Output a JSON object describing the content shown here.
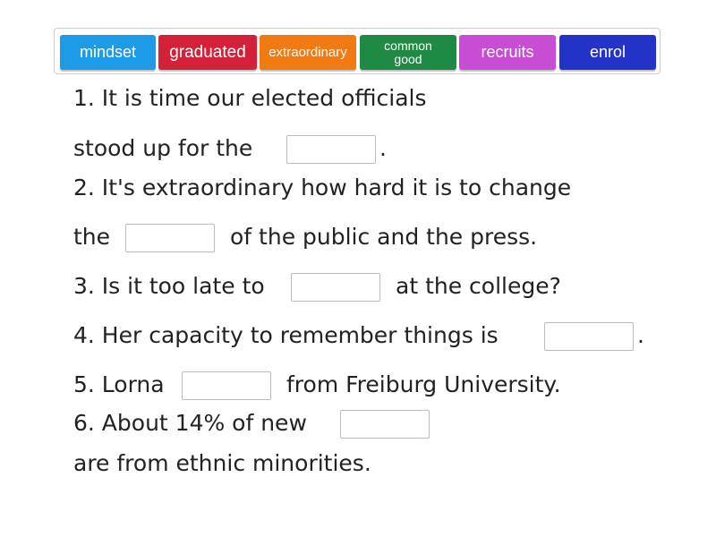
{
  "tiles": [
    {
      "label": "mindset",
      "color": "#1e9be6"
    },
    {
      "label": "graduated",
      "color": "#d4213a"
    },
    {
      "label": "extraordinary",
      "color": "#f27a12"
    },
    {
      "label": "common good",
      "color": "#1f8a44"
    },
    {
      "label": "recruits",
      "color": "#c84dd4"
    },
    {
      "label": "enrol",
      "color": "#2333c8"
    }
  ],
  "sentences": [
    {
      "p1": "1. It is time our elected officials",
      "p2": "stood up for the",
      "p3": "."
    },
    {
      "p1": "2. It's extraordinary how hard it is to change",
      "p2": "the",
      "p3": "of the public and the press."
    },
    {
      "p1": "3. Is it too late to",
      "p3": "at the college?"
    },
    {
      "p1": "4. Her capacity to remember things is",
      "p3": "."
    },
    {
      "p1": "5. Lorna",
      "p3": "from Freiburg University."
    },
    {
      "p1": "6. About 14% of new",
      "p2": "are from ethnic minorities."
    }
  ]
}
